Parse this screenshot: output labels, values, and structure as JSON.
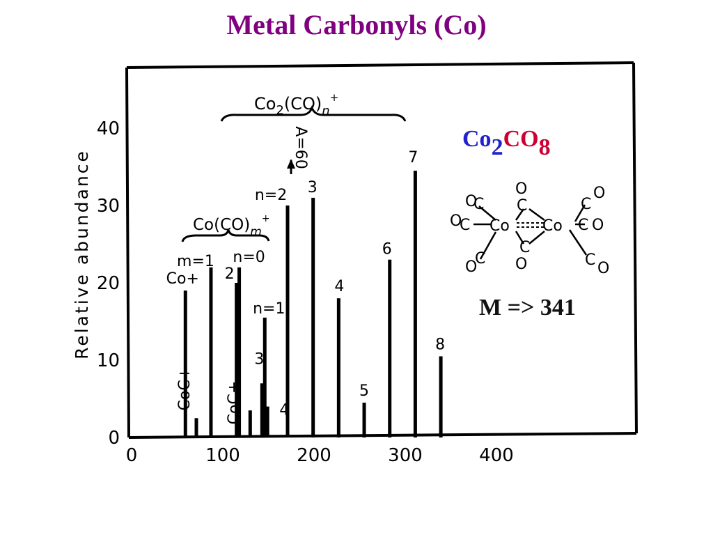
{
  "slide": {
    "title": "Metal Carbonyls (Co)"
  },
  "chart_data": {
    "type": "bar",
    "ylabel": "Relative abundance",
    "xlabel": "",
    "xlim": [
      0,
      430
    ],
    "ylim": [
      0,
      46
    ],
    "x_ticks": [
      "0",
      "100",
      "200",
      "300",
      "400"
    ],
    "y_ticks": [
      "0",
      "10",
      "20",
      "30",
      "40"
    ],
    "peaks": [
      {
        "x": 59,
        "value": 19,
        "label": "Co+"
      },
      {
        "x": 71,
        "value": 2.5,
        "label": "CoC+"
      },
      {
        "x": 87,
        "value": 22,
        "label": "m=1"
      },
      {
        "x": 115,
        "value": 20,
        "label": "2"
      },
      {
        "x": 118,
        "value": 22,
        "label": "n=0"
      },
      {
        "x": 130,
        "value": 3.5,
        "label": "CoC+"
      },
      {
        "x": 143,
        "value": 7,
        "label": "3"
      },
      {
        "x": 146,
        "value": 15.5,
        "label": "n=1"
      },
      {
        "x": 149,
        "value": 4,
        "label": "4"
      },
      {
        "x": 171,
        "value": 30,
        "label": "n=2"
      },
      {
        "x": 199,
        "value": 31,
        "label": "3"
      },
      {
        "x": 227,
        "value": 18,
        "label": "4"
      },
      {
        "x": 255,
        "value": 4.5,
        "label": "5"
      },
      {
        "x": 283,
        "value": 23,
        "label": "6"
      },
      {
        "x": 311,
        "value": 34.5,
        "label": "7"
      },
      {
        "x": 339,
        "value": 10.5,
        "label": "8"
      }
    ],
    "annotations": {
      "co2_group": "Co2(CO)n+",
      "co_group": "Co(CO)m+",
      "arrow_label": "A=60"
    }
  },
  "structure": {
    "formula_co2": "Co2",
    "formula_co8": "CO8",
    "formula_co": "Co",
    "formula_2": "2",
    "formula_CO": "CO",
    "formula_8": "8",
    "atom_co": "Co",
    "ligand_o": "O",
    "ligand_c": "C",
    "mass_label": "M => 341",
    "color_co": "#2222cc",
    "color_ligand": "#cc0033"
  }
}
